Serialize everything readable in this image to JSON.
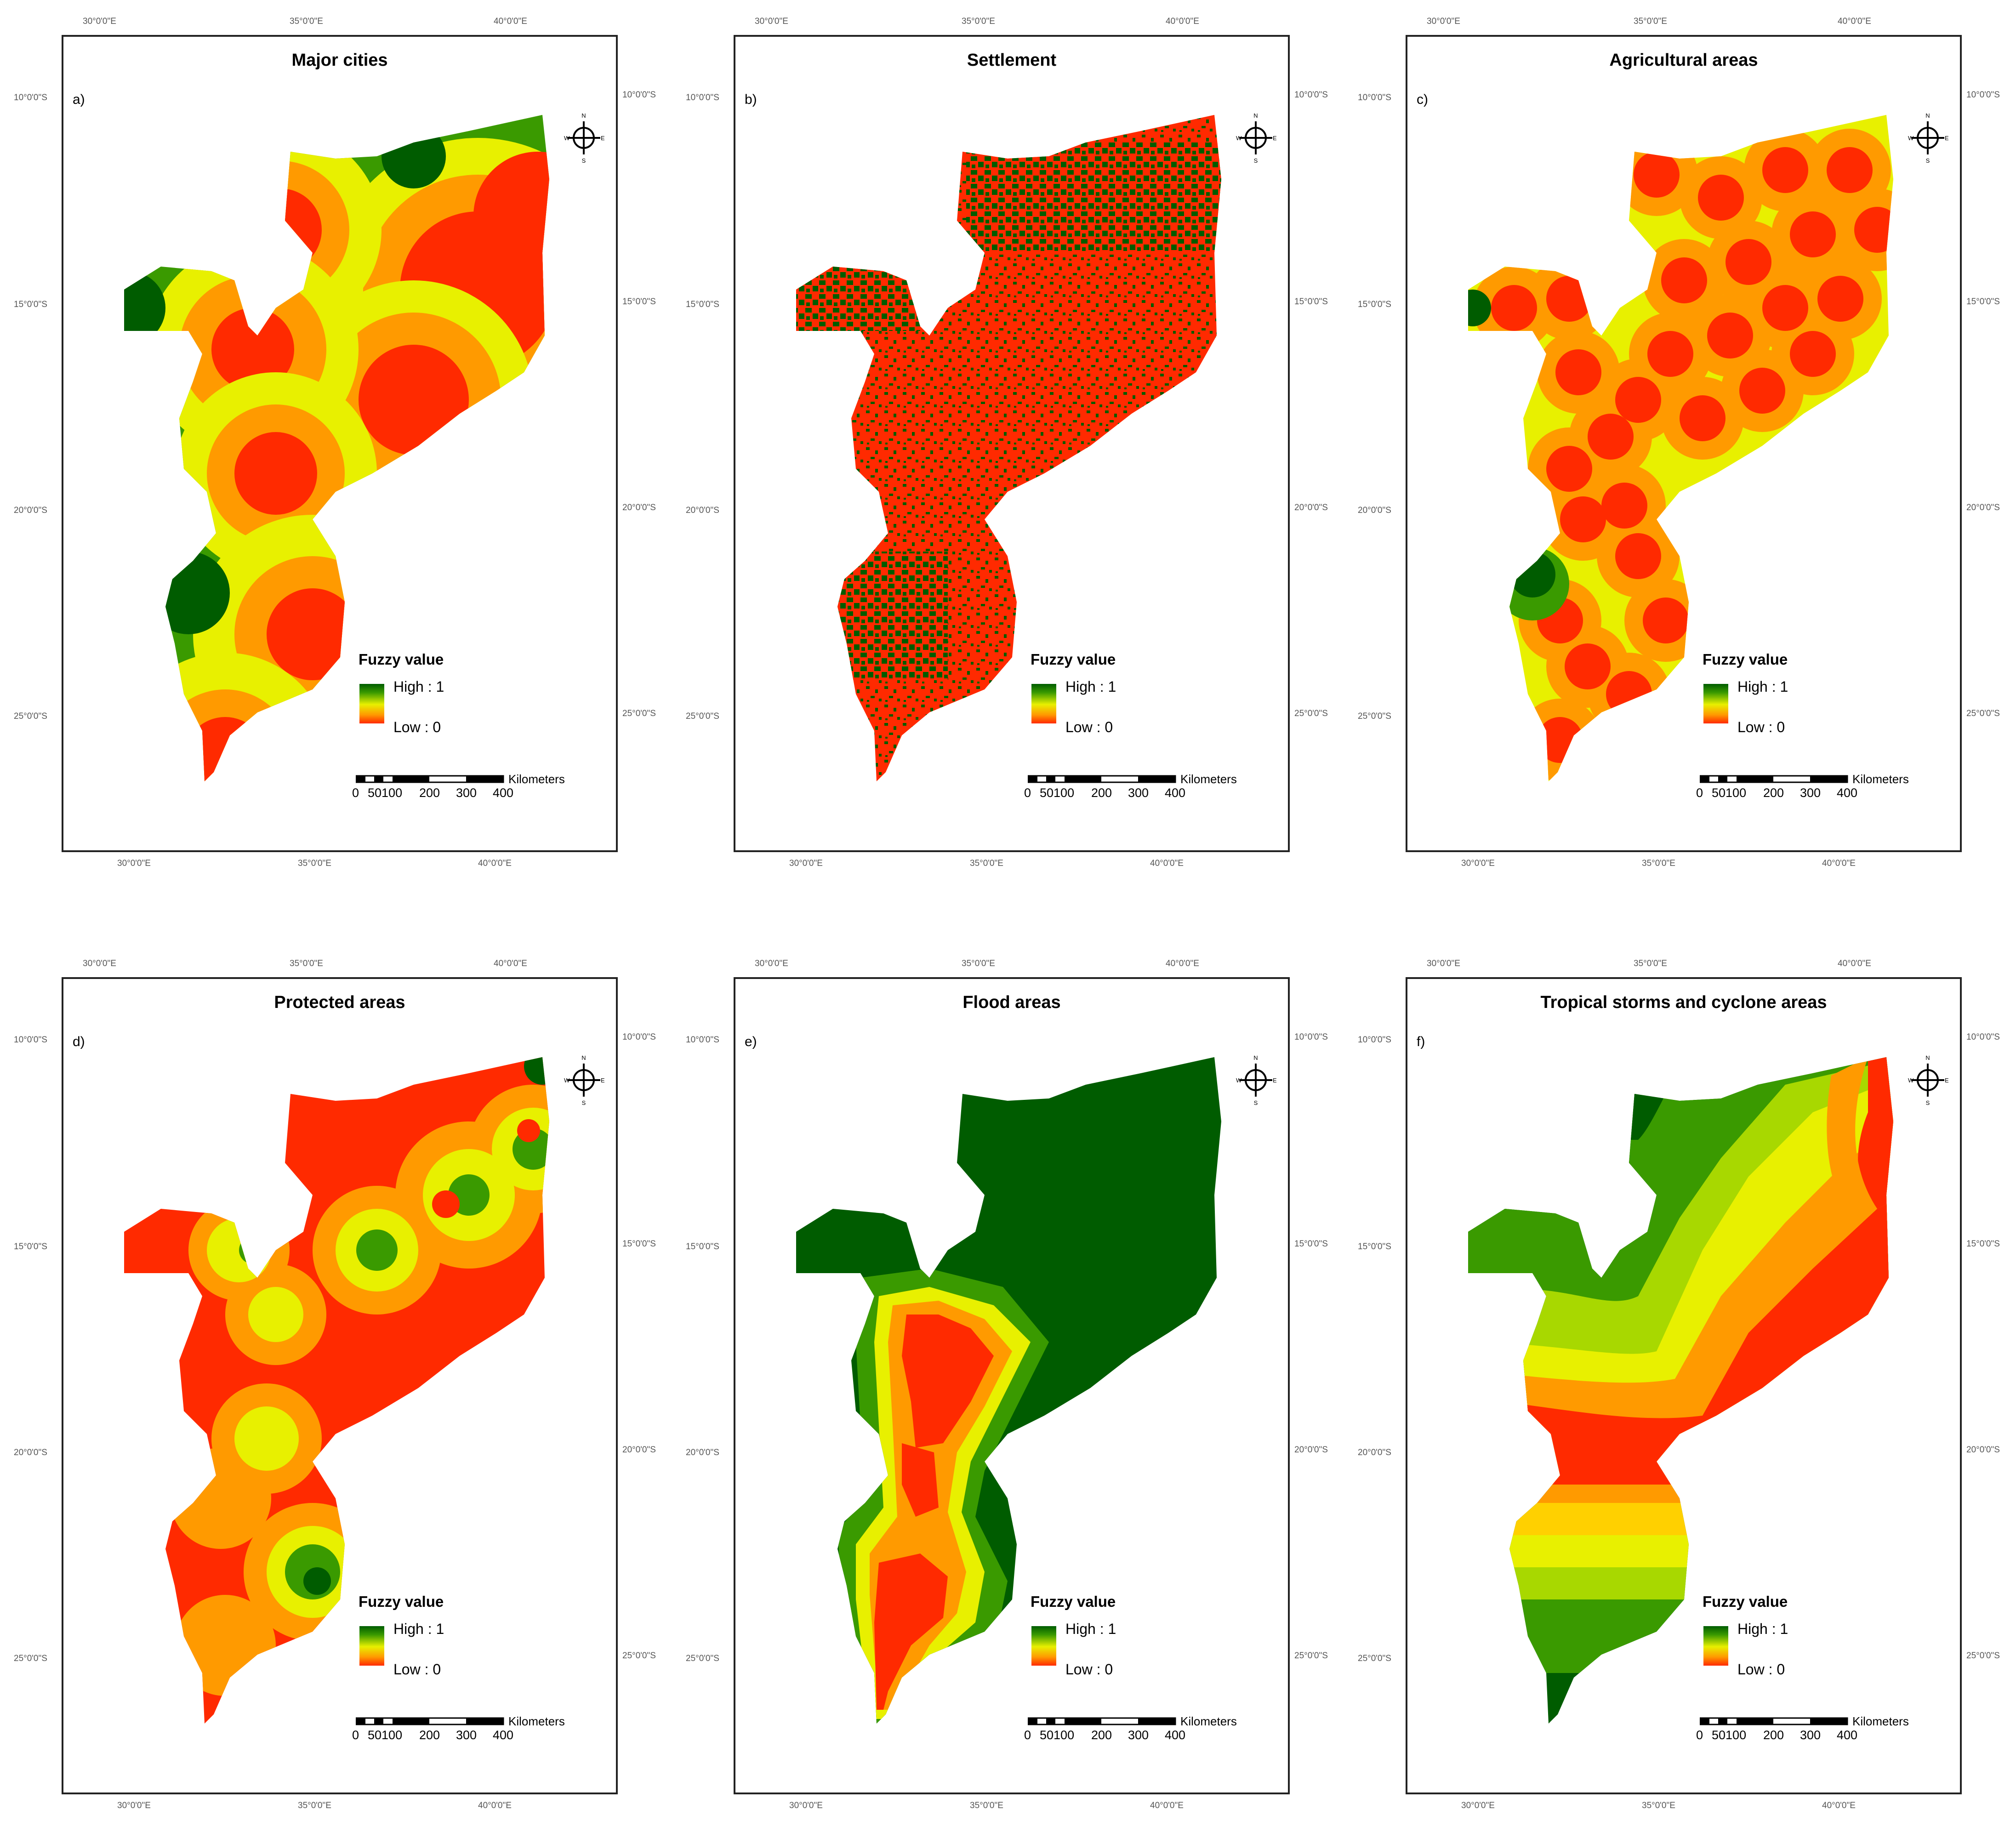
{
  "axis_labels": {
    "lon": [
      "30°0'0\"E",
      "35°0'0\"E",
      "40°0'0\"E"
    ],
    "lat": [
      "10°0'0\"S",
      "15°0'0\"S",
      "20°0'0\"S",
      "25°0'0\"S"
    ]
  },
  "legend": {
    "title": "Fuzzy value",
    "high": "High : 1",
    "low": "Low : 0"
  },
  "scale": {
    "unit": "Kilometers",
    "ticks": [
      "0",
      "50100",
      "200",
      "300",
      "400"
    ]
  },
  "compass": {
    "n": "N",
    "s": "S",
    "e": "E",
    "w": "W"
  },
  "colors": {
    "high": "#005c00",
    "mid_high": "#3a9a00",
    "mid": "#e8f000",
    "mid_low": "#ff9a00",
    "low": "#ff2a00"
  },
  "panels": [
    {
      "letter": "a)",
      "title": "Major cities"
    },
    {
      "letter": "b)",
      "title": "Settlement"
    },
    {
      "letter": "c)",
      "title": "Agricultural areas"
    },
    {
      "letter": "d)",
      "title": "Protected areas"
    },
    {
      "letter": "e)",
      "title": "Flood areas"
    },
    {
      "letter": "f)",
      "title": "Tropical storms and cyclone areas"
    }
  ]
}
